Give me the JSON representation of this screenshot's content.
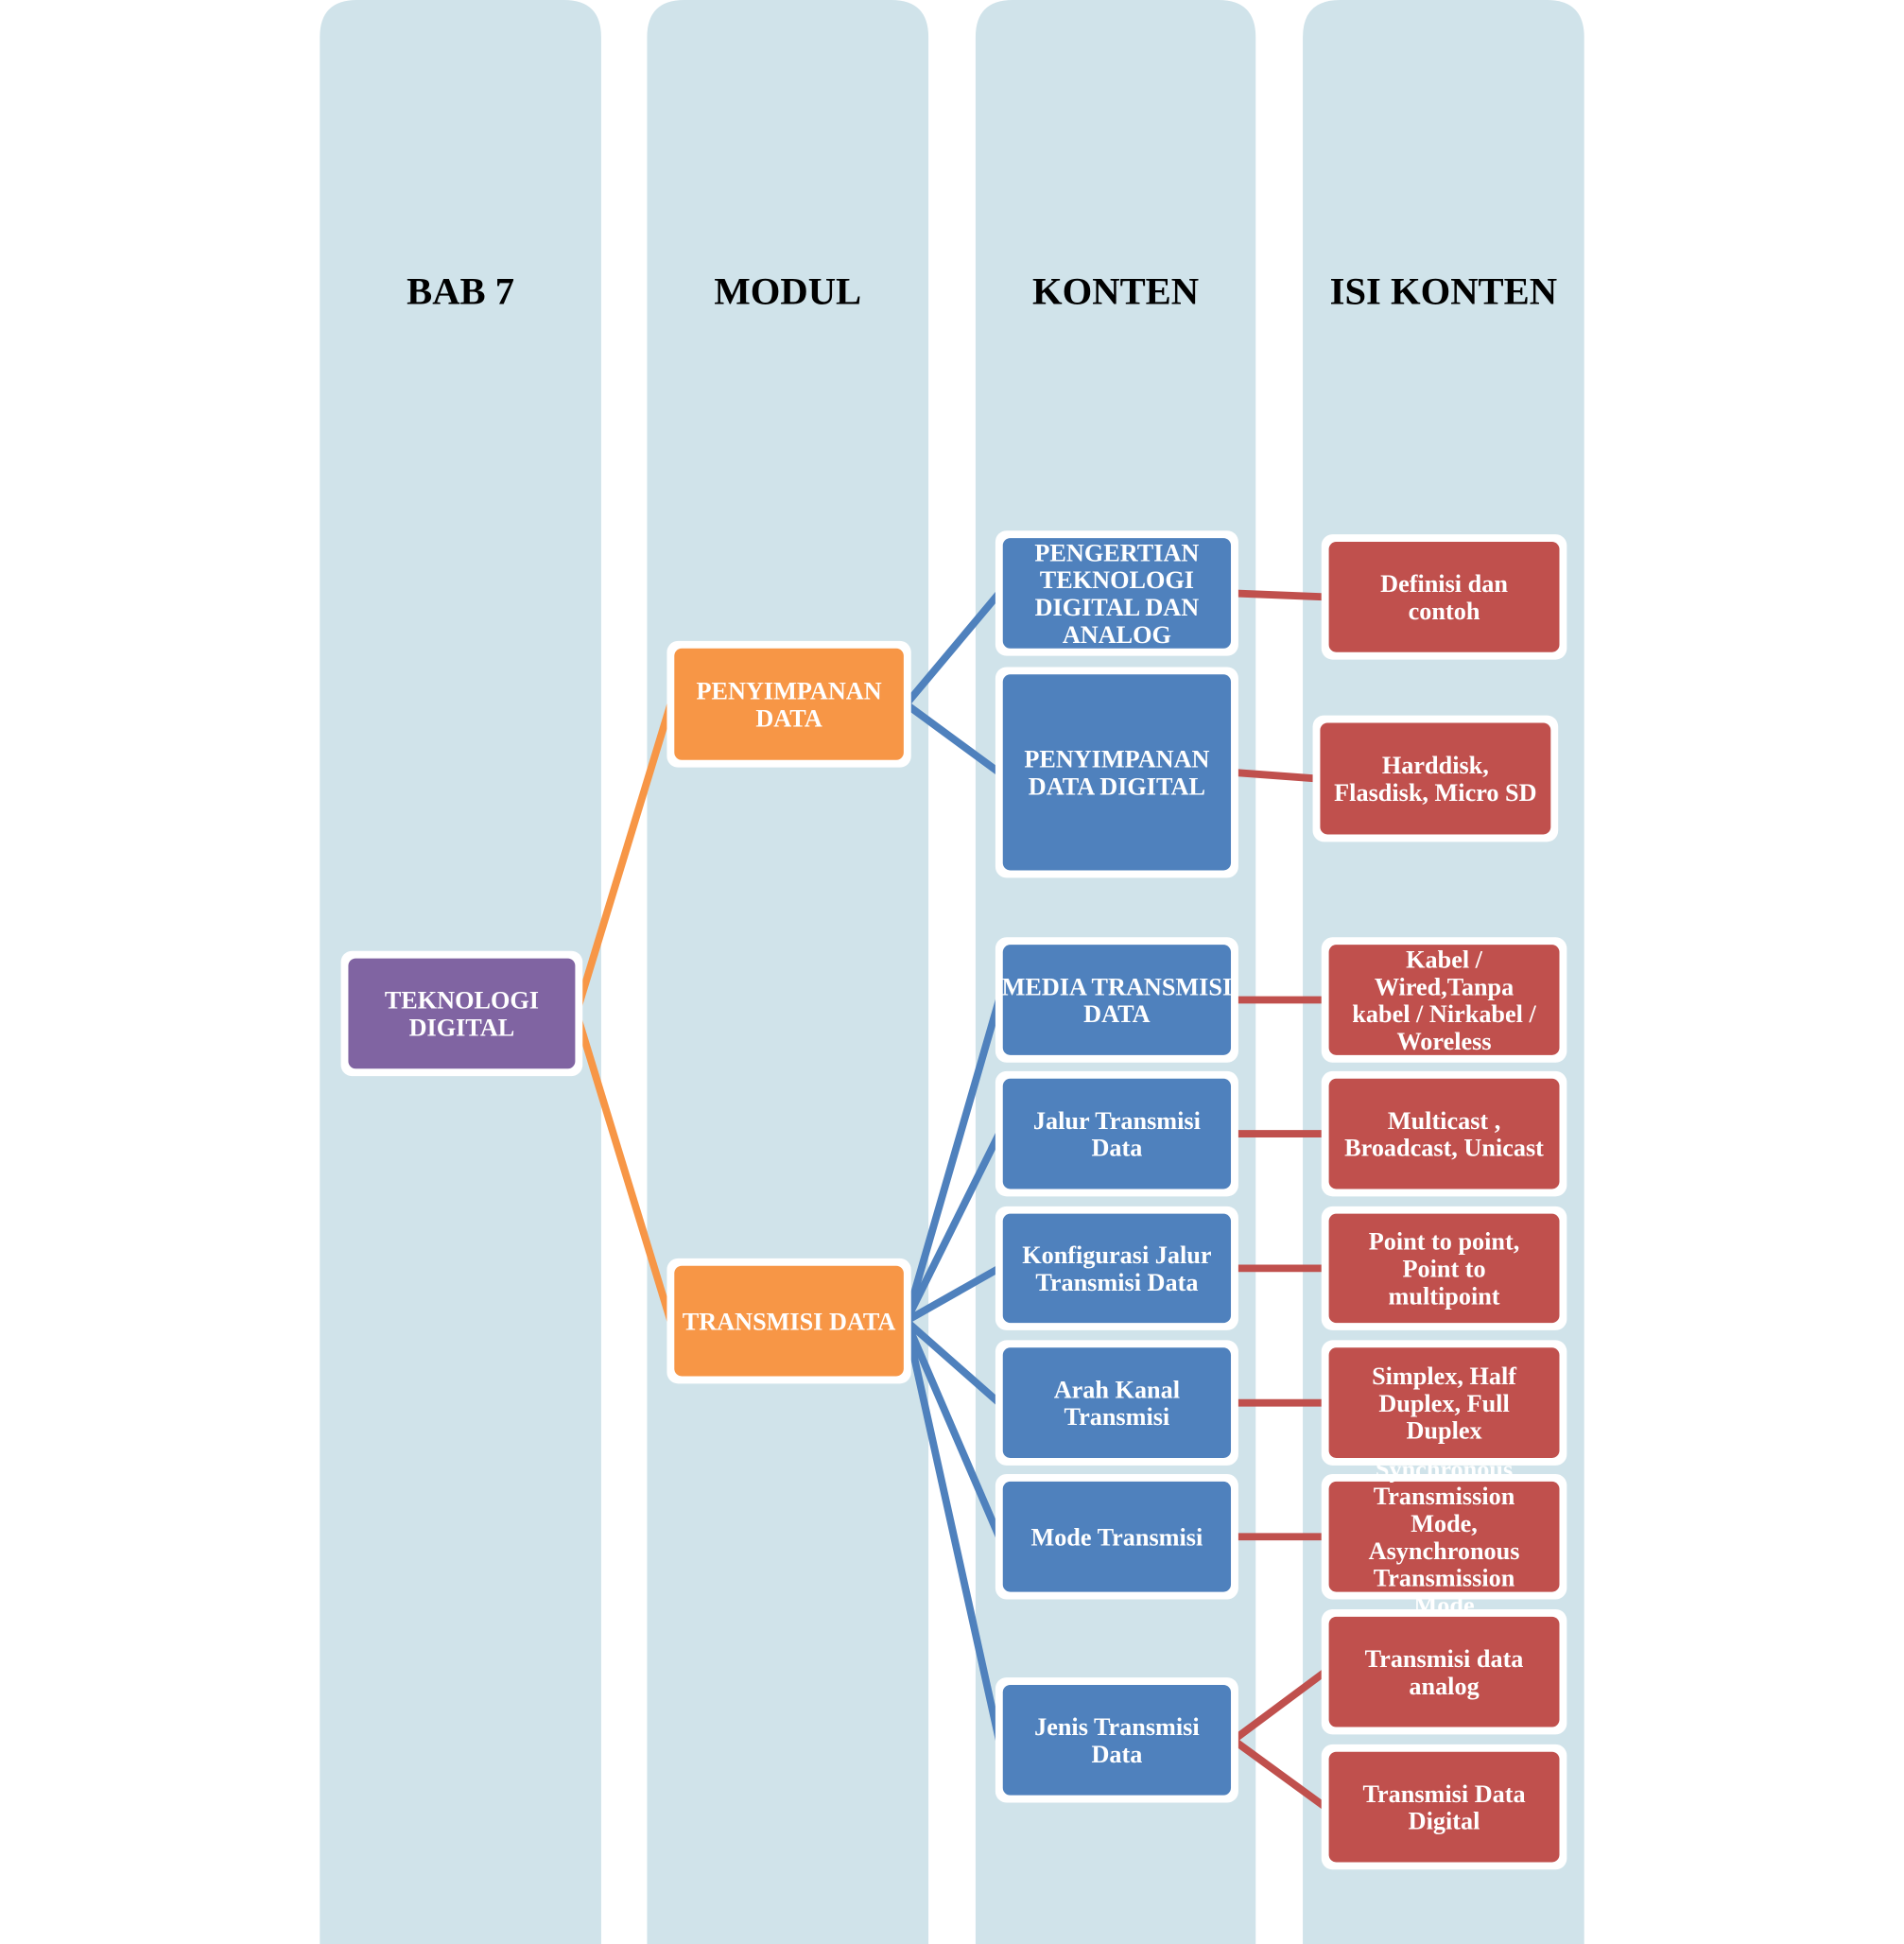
{
  "colors": {
    "column": "#D0E3EA",
    "root": "#8064A2",
    "modul": "#F79646",
    "konten": "#4F81BD",
    "isi": "#C0504D",
    "border": "#FFFFFF"
  },
  "headers": [
    "BAB 7",
    "MODUL",
    "KONTEN",
    "ISI KONTEN"
  ],
  "root": {
    "lines": [
      "TEKNOLOGI",
      "DIGITAL"
    ]
  },
  "modul": [
    {
      "lines": [
        "PENYIMPANAN",
        "DATA"
      ]
    },
    {
      "lines": [
        "TRANSMISI DATA"
      ]
    }
  ],
  "konten": [
    {
      "lines": [
        "PENGERTIAN",
        "TEKNOLOGI",
        "DIGITAL DAN",
        "ANALOG"
      ],
      "modul": 0
    },
    {
      "lines": [
        "PENYIMPANAN",
        "DATA DIGITAL"
      ],
      "modul": 0
    },
    {
      "lines": [
        "MEDIA TRANSMISI",
        "DATA"
      ],
      "modul": 1
    },
    {
      "lines": [
        "Jalur Transmisi",
        "Data"
      ],
      "modul": 1
    },
    {
      "lines": [
        "Konfigurasi Jalur",
        "Transmisi Data"
      ],
      "modul": 1
    },
    {
      "lines": [
        "Arah Kanal",
        "Transmisi"
      ],
      "modul": 1
    },
    {
      "lines": [
        "Mode Transmisi"
      ],
      "modul": 1
    },
    {
      "lines": [
        "Jenis Transmisi",
        "Data"
      ],
      "modul": 1
    }
  ],
  "isi": [
    {
      "lines": [
        "Definisi dan",
        "contoh"
      ],
      "konten": 0
    },
    {
      "lines": [
        "Harddisk,",
        "Flasdisk, Micro SD"
      ],
      "konten": 1
    },
    {
      "lines": [
        "Kabel /",
        "Wired,Tanpa",
        "kabel / Nirkabel /",
        "Woreless"
      ],
      "konten": 2
    },
    {
      "lines": [
        "Multicast ,",
        "Broadcast, Unicast"
      ],
      "konten": 3
    },
    {
      "lines": [
        "Point to point,",
        "Point to",
        "multipoint"
      ],
      "konten": 4
    },
    {
      "lines": [
        "Simplex, Half",
        "Duplex, Full",
        "Duplex"
      ],
      "konten": 5
    },
    {
      "lines": [
        "Synchronous",
        "Transmission",
        "Mode,",
        "Asynchronous",
        "Transmission",
        "Mode"
      ],
      "konten": 6
    },
    {
      "lines": [
        "Transmisi data",
        "analog"
      ],
      "konten": 7
    },
    {
      "lines": [
        "Transmisi Data",
        "Digital"
      ],
      "konten": 7
    }
  ]
}
